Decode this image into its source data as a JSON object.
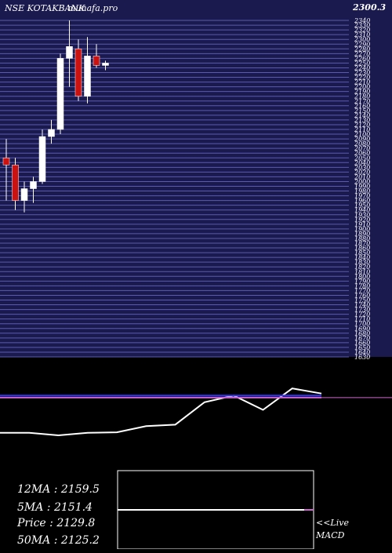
{
  "header": {
    "symbol": "NSE KOTAKBANK",
    "brand": "munafa.pro",
    "price_overlay": "2300.3"
  },
  "colors": {
    "background": "#000000",
    "price_panel_bg": "#1a1a4e",
    "grid_line": "#5a5ab0",
    "bull": "#ffffff",
    "bear": "#cc1111",
    "wick": "#ffffff",
    "line_white": "#ffffff",
    "line_blue": "#3333ff",
    "line_magenta": "#cc66cc",
    "text": "#ffffff"
  },
  "chart_data": [
    {
      "type": "candlestick",
      "title": "NSE KOTAKBANK",
      "ylim": [
        1630,
        2350
      ],
      "grid": true,
      "candles": [
        {
          "open": 2050,
          "high": 2090,
          "low": 1960,
          "close": 2035,
          "bull": false
        },
        {
          "open": 2035,
          "high": 2050,
          "low": 1940,
          "close": 1960,
          "bull": false
        },
        {
          "open": 1960,
          "high": 2000,
          "low": 1935,
          "close": 1985,
          "bull": true
        },
        {
          "open": 1985,
          "high": 2010,
          "low": 1955,
          "close": 2000,
          "bull": true
        },
        {
          "open": 2000,
          "high": 2110,
          "low": 1995,
          "close": 2095,
          "bull": true
        },
        {
          "open": 2095,
          "high": 2130,
          "low": 2080,
          "close": 2110,
          "bull": true
        },
        {
          "open": 2110,
          "high": 2270,
          "low": 2100,
          "close": 2260,
          "bull": true
        },
        {
          "open": 2260,
          "high": 2340,
          "low": 2200,
          "close": 2285,
          "bull": true
        },
        {
          "open": 2280,
          "high": 2300,
          "low": 2170,
          "close": 2180,
          "bull": false
        },
        {
          "open": 2180,
          "high": 2305,
          "low": 2165,
          "close": 2265,
          "bull": true
        },
        {
          "open": 2265,
          "high": 2290,
          "low": 2240,
          "close": 2245,
          "bull": false
        },
        {
          "open": 2245,
          "high": 2255,
          "low": 2235,
          "close": 2250,
          "bull": true
        }
      ]
    },
    {
      "type": "line",
      "title": "MACD",
      "ylim": [
        -1,
        1
      ],
      "series": [
        {
          "name": "",
          "x": [
            0,
            1,
            2,
            3,
            4,
            5,
            6,
            7,
            8,
            9,
            10,
            11
          ],
          "values": [
            0.05,
            0.05,
            0.0,
            0.05,
            0.06,
            0.18,
            0.21,
            0.65,
            0.78,
            0.5,
            0.92,
            0.82
          ]
        },
        {
          "name": "",
          "x": [
            0,
            5,
            10,
            11
          ],
          "values": [
            0.78,
            0.78,
            0.78,
            0.78
          ]
        },
        {
          "name": "",
          "x": [
            0,
            11
          ],
          "values": [
            0.74,
            0.74
          ]
        }
      ]
    }
  ],
  "stats": {
    "ma12": "12MA : 2159.5",
    "ma5": "5MA : 2151.4",
    "price": "Price  : 2129.8",
    "ma50": "50MA : 2125.2"
  },
  "live_label": "<<Live",
  "macd_label": "MACD"
}
